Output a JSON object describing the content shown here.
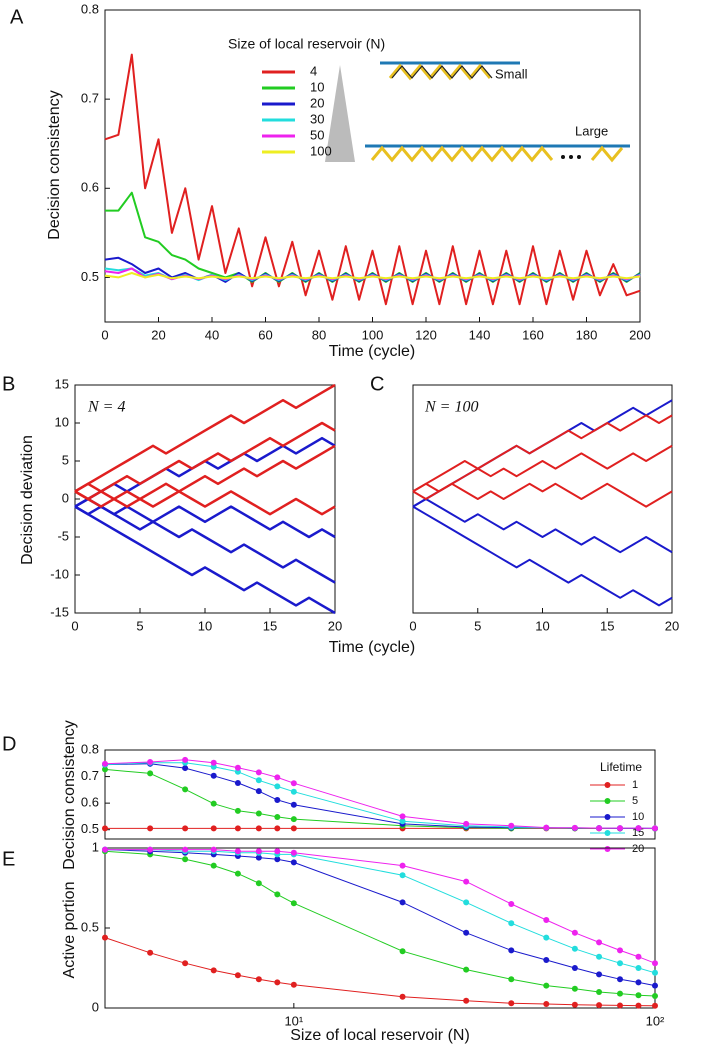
{
  "chart_data": [
    {
      "type": "line",
      "label": "A",
      "xlabel": "Time (cycle)",
      "ylabel": "Decision consistency",
      "legend_title": "Size of local reservoir (N)",
      "annotations": [
        "Small",
        "Large"
      ],
      "x": [
        0,
        5,
        10,
        15,
        20,
        25,
        30,
        35,
        40,
        45,
        50,
        55,
        60,
        65,
        70,
        75,
        80,
        85,
        90,
        95,
        100,
        105,
        110,
        115,
        120,
        125,
        130,
        135,
        140,
        145,
        150,
        155,
        160,
        165,
        170,
        175,
        180,
        185,
        190,
        195,
        200
      ],
      "xlim": [
        0,
        200
      ],
      "ylim": [
        0.45,
        0.8
      ],
      "xticks": [
        0,
        20,
        40,
        60,
        80,
        100,
        120,
        140,
        160,
        180,
        200
      ],
      "yticks": [
        0.5,
        0.6,
        0.7,
        0.8
      ],
      "series": [
        {
          "name": "4",
          "color": "#e02020",
          "values": [
            0.655,
            0.66,
            0.75,
            0.6,
            0.655,
            0.55,
            0.6,
            0.52,
            0.58,
            0.505,
            0.555,
            0.49,
            0.545,
            0.49,
            0.54,
            0.48,
            0.53,
            0.475,
            0.535,
            0.475,
            0.53,
            0.47,
            0.535,
            0.47,
            0.53,
            0.47,
            0.535,
            0.47,
            0.53,
            0.47,
            0.53,
            0.47,
            0.535,
            0.47,
            0.53,
            0.475,
            0.53,
            0.48,
            0.515,
            0.48,
            0.485
          ]
        },
        {
          "name": "10",
          "color": "#22cc22",
          "values": [
            0.575,
            0.575,
            0.595,
            0.545,
            0.54,
            0.525,
            0.52,
            0.51,
            0.505,
            0.5,
            0.505,
            0.495,
            0.505,
            0.495,
            0.505,
            0.495,
            0.505,
            0.495,
            0.505,
            0.495,
            0.505,
            0.495,
            0.505,
            0.495,
            0.505,
            0.495,
            0.505,
            0.495,
            0.505,
            0.495,
            0.505,
            0.495,
            0.505,
            0.495,
            0.505,
            0.495,
            0.505,
            0.495,
            0.505,
            0.495,
            0.505
          ]
        },
        {
          "name": "20",
          "color": "#1a1acc",
          "values": [
            0.52,
            0.522,
            0.515,
            0.505,
            0.51,
            0.5,
            0.505,
            0.498,
            0.503,
            0.495,
            0.505,
            0.496,
            0.504,
            0.496,
            0.504,
            0.496,
            0.504,
            0.496,
            0.504,
            0.496,
            0.504,
            0.496,
            0.504,
            0.496,
            0.504,
            0.496,
            0.504,
            0.496,
            0.504,
            0.496,
            0.504,
            0.496,
            0.504,
            0.496,
            0.504,
            0.496,
            0.504,
            0.496,
            0.504,
            0.496,
            0.504
          ]
        },
        {
          "name": "30",
          "color": "#22dddd",
          "values": [
            0.51,
            0.508,
            0.51,
            0.502,
            0.505,
            0.498,
            0.503,
            0.497,
            0.503,
            0.497,
            0.503,
            0.497,
            0.503,
            0.497,
            0.503,
            0.497,
            0.503,
            0.497,
            0.503,
            0.497,
            0.503,
            0.497,
            0.503,
            0.497,
            0.503,
            0.497,
            0.503,
            0.497,
            0.503,
            0.497,
            0.503,
            0.497,
            0.503,
            0.497,
            0.503,
            0.497,
            0.503,
            0.497,
            0.503,
            0.497,
            0.503
          ]
        },
        {
          "name": "50",
          "color": "#ee22ee",
          "values": [
            0.507,
            0.505,
            0.51,
            0.5,
            0.504,
            0.498,
            0.502,
            0.498,
            0.502,
            0.498,
            0.502,
            0.498,
            0.502,
            0.498,
            0.502,
            0.498,
            0.502,
            0.498,
            0.502,
            0.498,
            0.502,
            0.498,
            0.502,
            0.498,
            0.502,
            0.498,
            0.502,
            0.498,
            0.502,
            0.498,
            0.502,
            0.498,
            0.502,
            0.498,
            0.502,
            0.498,
            0.502,
            0.498,
            0.502,
            0.498,
            0.502
          ]
        },
        {
          "name": "100",
          "color": "#eeee22",
          "values": [
            0.502,
            0.5,
            0.505,
            0.5,
            0.503,
            0.499,
            0.501,
            0.499,
            0.501,
            0.499,
            0.501,
            0.499,
            0.501,
            0.499,
            0.501,
            0.499,
            0.501,
            0.499,
            0.501,
            0.499,
            0.501,
            0.499,
            0.501,
            0.499,
            0.501,
            0.499,
            0.501,
            0.499,
            0.501,
            0.499,
            0.501,
            0.499,
            0.501,
            0.499,
            0.501,
            0.499,
            0.501,
            0.499,
            0.501,
            0.499,
            0.501
          ]
        }
      ]
    },
    {
      "type": "line",
      "label": "B",
      "xlabel": "Time (cycle)",
      "ylabel": "Decision deviation",
      "annotation": "N = 4",
      "x": [
        0,
        1,
        2,
        3,
        4,
        5,
        6,
        7,
        8,
        9,
        10,
        11,
        12,
        13,
        14,
        15,
        16,
        17,
        18,
        19,
        20
      ],
      "xlim": [
        0,
        20
      ],
      "ylim": [
        -15,
        15
      ],
      "xticks": [
        0,
        5,
        10,
        15,
        20
      ],
      "yticks": [
        -15,
        -10,
        -5,
        0,
        5,
        10,
        15
      ],
      "series": [
        {
          "color": "#1a1acc",
          "values": [
            -1,
            -2,
            -3,
            -4,
            -5,
            -6,
            -7,
            -8,
            -9,
            -10,
            -9,
            -10,
            -11,
            -12,
            -11,
            -12,
            -13,
            -14,
            -13,
            -14,
            -15
          ]
        },
        {
          "color": "#1a1acc",
          "values": [
            -1,
            -2,
            -1,
            -2,
            -3,
            -4,
            -3,
            -4,
            -5,
            -4,
            -5,
            -6,
            -7,
            -6,
            -7,
            -8,
            -9,
            -8,
            -9,
            -10,
            -11
          ]
        },
        {
          "color": "#1a1acc",
          "values": [
            -1,
            0,
            -1,
            -2,
            -1,
            -2,
            -3,
            -2,
            -1,
            -2,
            -3,
            -2,
            -1,
            -2,
            -3,
            -4,
            -3,
            -4,
            -5,
            -4,
            -5
          ]
        },
        {
          "color": "#1a1acc",
          "values": [
            -1,
            0,
            1,
            2,
            1,
            2,
            3,
            4,
            3,
            4,
            5,
            4,
            5,
            6,
            5,
            6,
            7,
            6,
            7,
            8,
            7
          ]
        },
        {
          "color": "#e02020",
          "values": [
            1,
            2,
            3,
            4,
            5,
            6,
            7,
            6,
            7,
            8,
            9,
            10,
            11,
            10,
            11,
            12,
            13,
            12,
            13,
            14,
            15
          ]
        },
        {
          "color": "#e02020",
          "values": [
            1,
            2,
            1,
            2,
            3,
            2,
            3,
            4,
            5,
            4,
            5,
            6,
            5,
            6,
            7,
            8,
            7,
            8,
            9,
            10,
            9
          ]
        },
        {
          "color": "#e02020",
          "values": [
            1,
            0,
            1,
            0,
            -1,
            0,
            1,
            2,
            1,
            2,
            3,
            2,
            3,
            4,
            3,
            4,
            5,
            4,
            5,
            6,
            7
          ]
        },
        {
          "color": "#e02020",
          "values": [
            1,
            0,
            -1,
            0,
            1,
            0,
            -1,
            0,
            1,
            0,
            -1,
            0,
            1,
            0,
            -1,
            -2,
            -1,
            0,
            -1,
            -2,
            -1
          ]
        }
      ]
    },
    {
      "type": "line",
      "label": "C",
      "annotation": "N = 100",
      "x": [
        0,
        1,
        2,
        3,
        4,
        5,
        6,
        7,
        8,
        9,
        10,
        11,
        12,
        13,
        14,
        15,
        16,
        17,
        18,
        19,
        20
      ],
      "xlim": [
        0,
        20
      ],
      "ylim": [
        -15,
        15
      ],
      "xticks": [
        0,
        5,
        10,
        15,
        20
      ],
      "series": [
        {
          "color": "#1a1acc",
          "values": [
            -1,
            -2,
            -3,
            -4,
            -5,
            -6,
            -7,
            -8,
            -9,
            -8,
            -9,
            -10,
            -11,
            -10,
            -11,
            -12,
            -13,
            -12,
            -13,
            -14,
            -13
          ]
        },
        {
          "color": "#1a1acc",
          "values": [
            -1,
            0,
            -1,
            -2,
            -3,
            -2,
            -3,
            -4,
            -3,
            -4,
            -5,
            -4,
            -5,
            -6,
            -5,
            -6,
            -7,
            -6,
            -5,
            -6,
            -7
          ]
        },
        {
          "color": "#1a1acc",
          "values": [
            -1,
            0,
            1,
            2,
            3,
            4,
            5,
            6,
            7,
            6,
            7,
            8,
            9,
            10,
            9,
            10,
            11,
            12,
            11,
            12,
            13
          ]
        },
        {
          "color": "#e02020",
          "values": [
            1,
            2,
            3,
            4,
            5,
            4,
            5,
            6,
            7,
            6,
            7,
            8,
            9,
            8,
            9,
            10,
            9,
            10,
            11,
            10,
            11
          ]
        },
        {
          "color": "#e02020",
          "values": [
            1,
            2,
            1,
            2,
            3,
            4,
            3,
            4,
            3,
            4,
            5,
            4,
            5,
            6,
            5,
            4,
            5,
            6,
            5,
            6,
            7
          ]
        },
        {
          "color": "#e02020",
          "values": [
            1,
            0,
            1,
            2,
            1,
            0,
            1,
            0,
            1,
            2,
            1,
            2,
            1,
            0,
            1,
            2,
            1,
            0,
            -1,
            0,
            1
          ]
        }
      ]
    },
    {
      "type": "line",
      "label": "D",
      "ylabel": "Decision consistency",
      "legend_title": "Lifetime",
      "markers": true,
      "xscale": "log",
      "x": [
        3,
        4,
        5,
        6,
        7,
        8,
        9,
        10,
        20,
        30,
        40,
        50,
        60,
        70,
        80,
        90,
        100
      ],
      "xlim": [
        3,
        100
      ],
      "ylim": [
        0.465,
        0.8
      ],
      "yticks": [
        0.5,
        0.6,
        0.7,
        0.8
      ],
      "series": [
        {
          "name": "1",
          "color": "#e02020",
          "values": [
            0.505,
            0.505,
            0.505,
            0.505,
            0.505,
            0.505,
            0.505,
            0.505,
            0.505,
            0.505,
            0.505,
            0.505,
            0.505,
            0.505,
            0.505,
            0.505,
            0.505
          ]
        },
        {
          "name": "5",
          "color": "#22cc22",
          "values": [
            0.727,
            0.712,
            0.652,
            0.598,
            0.571,
            0.561,
            0.548,
            0.54,
            0.515,
            0.508,
            0.505,
            0.507,
            0.505,
            0.506,
            0.505,
            0.505,
            0.504
          ]
        },
        {
          "name": "10",
          "color": "#1a1acc",
          "values": [
            0.745,
            0.748,
            0.732,
            0.703,
            0.676,
            0.645,
            0.612,
            0.594,
            0.522,
            0.51,
            0.508,
            0.507,
            0.506,
            0.506,
            0.505,
            0.505,
            0.505
          ]
        },
        {
          "name": "15",
          "color": "#22dddd",
          "values": [
            0.745,
            0.752,
            0.752,
            0.737,
            0.718,
            0.686,
            0.663,
            0.643,
            0.532,
            0.515,
            0.51,
            0.507,
            0.507,
            0.506,
            0.506,
            0.506,
            0.505
          ]
        },
        {
          "name": "20",
          "color": "#ee22ee",
          "values": [
            0.748,
            0.755,
            0.763,
            0.752,
            0.733,
            0.716,
            0.697,
            0.675,
            0.55,
            0.522,
            0.515,
            0.508,
            0.507,
            0.506,
            0.506,
            0.506,
            0.505
          ]
        }
      ]
    },
    {
      "type": "line",
      "label": "E",
      "xlabel": "Size of local reservoir (N)",
      "ylabel": "Active portion",
      "markers": true,
      "xscale": "log",
      "x": [
        3,
        4,
        5,
        6,
        7,
        8,
        9,
        10,
        20,
        30,
        40,
        50,
        60,
        70,
        80,
        90,
        100
      ],
      "xlim": [
        3,
        100
      ],
      "ylim": [
        0,
        1
      ],
      "yticks": [
        0,
        0.5,
        1
      ],
      "xticks": [
        {
          "value": 10,
          "label": "10¹"
        },
        {
          "value": 100,
          "label": "10²"
        }
      ],
      "series": [
        {
          "color": "#e02020",
          "values": [
            0.44,
            0.345,
            0.28,
            0.235,
            0.205,
            0.18,
            0.16,
            0.145,
            0.07,
            0.045,
            0.03,
            0.025,
            0.02,
            0.018,
            0.016,
            0.015,
            0.014
          ]
        },
        {
          "color": "#22cc22",
          "values": [
            0.98,
            0.96,
            0.93,
            0.89,
            0.84,
            0.78,
            0.71,
            0.655,
            0.355,
            0.24,
            0.18,
            0.14,
            0.12,
            0.1,
            0.09,
            0.08,
            0.075
          ]
        },
        {
          "color": "#1a1acc",
          "values": [
            0.99,
            0.98,
            0.97,
            0.96,
            0.95,
            0.94,
            0.93,
            0.91,
            0.66,
            0.47,
            0.36,
            0.3,
            0.25,
            0.21,
            0.18,
            0.16,
            0.14
          ]
        },
        {
          "color": "#22dddd",
          "values": [
            0.99,
            0.99,
            0.98,
            0.98,
            0.97,
            0.97,
            0.96,
            0.96,
            0.83,
            0.66,
            0.53,
            0.44,
            0.37,
            0.32,
            0.28,
            0.25,
            0.22
          ]
        },
        {
          "color": "#ee22ee",
          "values": [
            0.99,
            0.99,
            0.99,
            0.99,
            0.98,
            0.98,
            0.98,
            0.97,
            0.89,
            0.79,
            0.65,
            0.55,
            0.47,
            0.41,
            0.36,
            0.32,
            0.28
          ]
        }
      ]
    }
  ]
}
